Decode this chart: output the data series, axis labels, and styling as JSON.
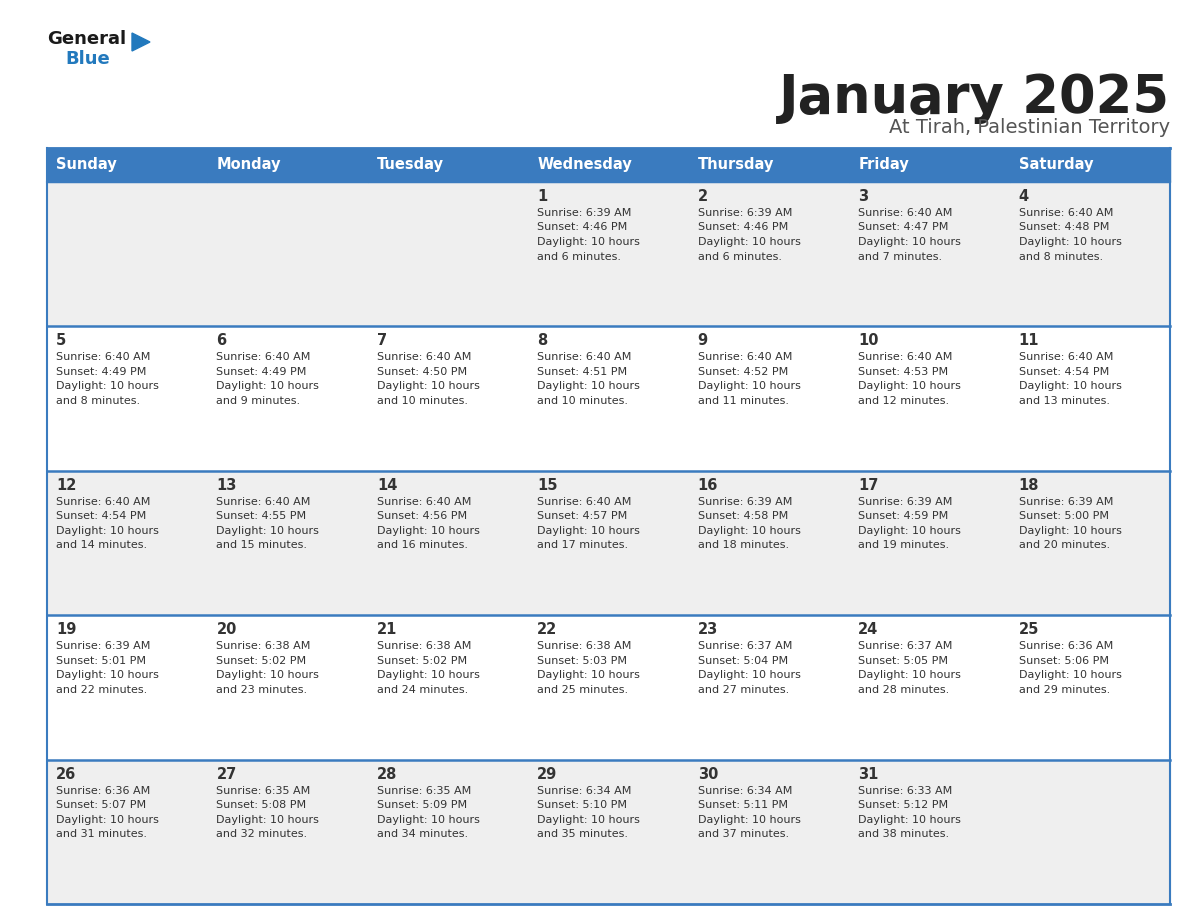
{
  "title": "January 2025",
  "subtitle": "At Tirah, Palestinian Territory",
  "days_of_week": [
    "Sunday",
    "Monday",
    "Tuesday",
    "Wednesday",
    "Thursday",
    "Friday",
    "Saturday"
  ],
  "header_bg_color": "#3a7bbf",
  "header_text_color": "#ffffff",
  "cell_bg_odd": "#efefef",
  "cell_bg_even": "#ffffff",
  "cell_text_color": "#333333",
  "day_num_color": "#333333",
  "divider_color": "#3a7bbf",
  "title_color": "#222222",
  "subtitle_color": "#555555",
  "general_text_color": "#1a1a1a",
  "blue_text_color": "#2279bd",
  "triangle_color": "#2279bd",
  "calendar_data": [
    [
      null,
      null,
      null,
      {
        "day": 1,
        "sunrise": "6:39 AM",
        "sunset": "4:46 PM",
        "minutes": "6"
      },
      {
        "day": 2,
        "sunrise": "6:39 AM",
        "sunset": "4:46 PM",
        "minutes": "6"
      },
      {
        "day": 3,
        "sunrise": "6:40 AM",
        "sunset": "4:47 PM",
        "minutes": "7"
      },
      {
        "day": 4,
        "sunrise": "6:40 AM",
        "sunset": "4:48 PM",
        "minutes": "8"
      }
    ],
    [
      {
        "day": 5,
        "sunrise": "6:40 AM",
        "sunset": "4:49 PM",
        "minutes": "8"
      },
      {
        "day": 6,
        "sunrise": "6:40 AM",
        "sunset": "4:49 PM",
        "minutes": "9"
      },
      {
        "day": 7,
        "sunrise": "6:40 AM",
        "sunset": "4:50 PM",
        "minutes": "10"
      },
      {
        "day": 8,
        "sunrise": "6:40 AM",
        "sunset": "4:51 PM",
        "minutes": "10"
      },
      {
        "day": 9,
        "sunrise": "6:40 AM",
        "sunset": "4:52 PM",
        "minutes": "11"
      },
      {
        "day": 10,
        "sunrise": "6:40 AM",
        "sunset": "4:53 PM",
        "minutes": "12"
      },
      {
        "day": 11,
        "sunrise": "6:40 AM",
        "sunset": "4:54 PM",
        "minutes": "13"
      }
    ],
    [
      {
        "day": 12,
        "sunrise": "6:40 AM",
        "sunset": "4:54 PM",
        "minutes": "14"
      },
      {
        "day": 13,
        "sunrise": "6:40 AM",
        "sunset": "4:55 PM",
        "minutes": "15"
      },
      {
        "day": 14,
        "sunrise": "6:40 AM",
        "sunset": "4:56 PM",
        "minutes": "16"
      },
      {
        "day": 15,
        "sunrise": "6:40 AM",
        "sunset": "4:57 PM",
        "minutes": "17"
      },
      {
        "day": 16,
        "sunrise": "6:39 AM",
        "sunset": "4:58 PM",
        "minutes": "18"
      },
      {
        "day": 17,
        "sunrise": "6:39 AM",
        "sunset": "4:59 PM",
        "minutes": "19"
      },
      {
        "day": 18,
        "sunrise": "6:39 AM",
        "sunset": "5:00 PM",
        "minutes": "20"
      }
    ],
    [
      {
        "day": 19,
        "sunrise": "6:39 AM",
        "sunset": "5:01 PM",
        "minutes": "22"
      },
      {
        "day": 20,
        "sunrise": "6:38 AM",
        "sunset": "5:02 PM",
        "minutes": "23"
      },
      {
        "day": 21,
        "sunrise": "6:38 AM",
        "sunset": "5:02 PM",
        "minutes": "24"
      },
      {
        "day": 22,
        "sunrise": "6:38 AM",
        "sunset": "5:03 PM",
        "minutes": "25"
      },
      {
        "day": 23,
        "sunrise": "6:37 AM",
        "sunset": "5:04 PM",
        "minutes": "27"
      },
      {
        "day": 24,
        "sunrise": "6:37 AM",
        "sunset": "5:05 PM",
        "minutes": "28"
      },
      {
        "day": 25,
        "sunrise": "6:36 AM",
        "sunset": "5:06 PM",
        "minutes": "29"
      }
    ],
    [
      {
        "day": 26,
        "sunrise": "6:36 AM",
        "sunset": "5:07 PM",
        "minutes": "31"
      },
      {
        "day": 27,
        "sunrise": "6:35 AM",
        "sunset": "5:08 PM",
        "minutes": "32"
      },
      {
        "day": 28,
        "sunrise": "6:35 AM",
        "sunset": "5:09 PM",
        "minutes": "34"
      },
      {
        "day": 29,
        "sunrise": "6:34 AM",
        "sunset": "5:10 PM",
        "minutes": "35"
      },
      {
        "day": 30,
        "sunrise": "6:34 AM",
        "sunset": "5:11 PM",
        "minutes": "37"
      },
      {
        "day": 31,
        "sunrise": "6:33 AM",
        "sunset": "5:12 PM",
        "minutes": "38"
      },
      null
    ]
  ]
}
